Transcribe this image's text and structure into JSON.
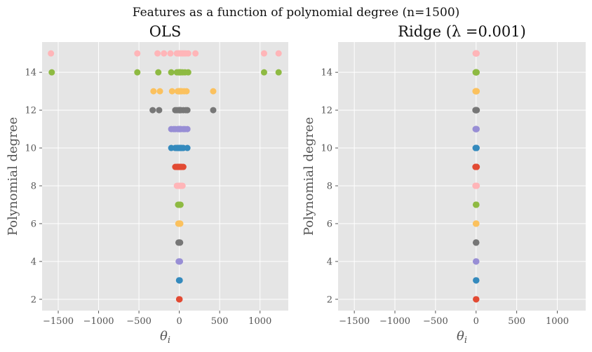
{
  "suptitle": "Features as a function of polynomial degree (n=1500)",
  "colors": [
    "#E24A33",
    "#348ABD",
    "#988ED5",
    "#777777",
    "#FBC15E",
    "#8EBA42",
    "#FFB5B8"
  ],
  "chart_data": [
    {
      "type": "scatter",
      "title": "OLS",
      "xlabel": "θ_i",
      "ylabel": "Polynomial degree",
      "xlim": [
        -1700,
        1350
      ],
      "ylim": [
        1.4,
        15.6
      ],
      "xticks": [
        -1500,
        -1000,
        -500,
        0,
        500,
        1000
      ],
      "xtick_labels": [
        "−1500",
        "−1000",
        "−500",
        "0",
        "500",
        "1000"
      ],
      "yticks": [
        2,
        4,
        6,
        8,
        10,
        12,
        14
      ],
      "grid": true,
      "series": [
        {
          "degree": 2,
          "x": [
            0,
            3,
            -2
          ]
        },
        {
          "degree": 3,
          "x": [
            -3,
            0,
            5,
            2
          ]
        },
        {
          "degree": 4,
          "x": [
            -8,
            0,
            8,
            3,
            -3
          ]
        },
        {
          "degree": 5,
          "x": [
            -10,
            0,
            10,
            5,
            -5,
            2
          ]
        },
        {
          "degree": 6,
          "x": [
            -12,
            0,
            12,
            6,
            -6,
            3,
            1
          ]
        },
        {
          "degree": 7,
          "x": [
            -15,
            0,
            15,
            8,
            -8,
            4,
            2,
            0
          ]
        },
        {
          "degree": 8,
          "x": [
            -30,
            0,
            40,
            15,
            -15,
            10,
            5,
            20,
            30
          ]
        },
        {
          "degree": 9,
          "x": [
            -50,
            -30,
            -10,
            0,
            10,
            30,
            50,
            20,
            -20,
            0
          ]
        },
        {
          "degree": 10,
          "x": [
            -100,
            -50,
            0,
            50,
            100,
            -20,
            20,
            30,
            -30,
            0,
            10
          ]
        },
        {
          "degree": 11,
          "x": [
            -100,
            -50,
            -20,
            0,
            20,
            50,
            100,
            70,
            -70,
            10,
            0,
            5
          ]
        },
        {
          "degree": 12,
          "x": [
            -330,
            -250,
            0,
            100,
            80,
            420,
            -30,
            20,
            50,
            -50,
            10,
            0,
            5
          ]
        },
        {
          "degree": 13,
          "x": [
            -320,
            -240,
            -90,
            0,
            30,
            60,
            90,
            420,
            10,
            -20,
            -10,
            0,
            5,
            20
          ]
        },
        {
          "degree": 14,
          "x": [
            -1580,
            -520,
            -260,
            -100,
            -10,
            10,
            40,
            70,
            110,
            1050,
            1230,
            0,
            20,
            -30,
            5
          ]
        },
        {
          "degree": 15,
          "x": [
            -1590,
            -520,
            -270,
            -190,
            -110,
            -30,
            20,
            60,
            110,
            200,
            1050,
            1230,
            0,
            40,
            -10,
            80
          ]
        }
      ]
    },
    {
      "type": "scatter",
      "title": "Ridge (λ =0.001)",
      "xlabel": "θ_i",
      "ylabel": "Polynomial degree",
      "xlim": [
        -1700,
        1350
      ],
      "ylim": [
        1.4,
        15.6
      ],
      "xticks": [
        -1500,
        -1000,
        -500,
        0,
        500,
        1000
      ],
      "xtick_labels": [
        "−1500",
        "−1000",
        "−500",
        "0",
        "500",
        "1000"
      ],
      "yticks": [
        2,
        4,
        6,
        8,
        10,
        12,
        14
      ],
      "grid": true,
      "series": [
        {
          "degree": 2,
          "x": [
            0,
            2,
            -1
          ]
        },
        {
          "degree": 3,
          "x": [
            0,
            1,
            -1,
            2
          ]
        },
        {
          "degree": 4,
          "x": [
            0,
            1,
            -1,
            2,
            -2
          ]
        },
        {
          "degree": 5,
          "x": [
            0,
            2,
            -2,
            1,
            -1,
            0
          ]
        },
        {
          "degree": 6,
          "x": [
            0,
            3,
            -3,
            1,
            -1,
            2,
            0
          ]
        },
        {
          "degree": 7,
          "x": [
            0,
            2,
            -2,
            1,
            -1,
            3,
            0,
            1
          ]
        },
        {
          "degree": 8,
          "x": [
            -8,
            -4,
            0,
            4,
            8,
            2,
            -2,
            6,
            -6
          ]
        },
        {
          "degree": 9,
          "x": [
            -8,
            -4,
            0,
            4,
            8,
            2,
            -2,
            6,
            -6,
            0
          ]
        },
        {
          "degree": 10,
          "x": [
            -6,
            -3,
            0,
            3,
            6,
            1,
            -1,
            4,
            -4,
            2,
            0
          ]
        },
        {
          "degree": 11,
          "x": [
            -6,
            -3,
            0,
            3,
            6,
            1,
            -1,
            4,
            -4,
            2,
            0,
            1
          ]
        },
        {
          "degree": 12,
          "x": [
            -8,
            -4,
            0,
            4,
            8,
            2,
            -2,
            6,
            -6,
            1,
            0,
            3,
            -3
          ]
        },
        {
          "degree": 13,
          "x": [
            -7,
            -3,
            0,
            3,
            7,
            1,
            -1,
            5,
            -5,
            2,
            0,
            4,
            -2,
            1
          ]
        },
        {
          "degree": 14,
          "x": [
            -6,
            -3,
            0,
            3,
            6,
            1,
            -1,
            4,
            -4,
            2,
            0,
            5,
            -2,
            1,
            0
          ]
        },
        {
          "degree": 15,
          "x": [
            -6,
            -3,
            0,
            3,
            6,
            1,
            -1,
            4,
            -4,
            2,
            0,
            5,
            -2,
            1,
            0,
            3
          ]
        }
      ]
    }
  ]
}
